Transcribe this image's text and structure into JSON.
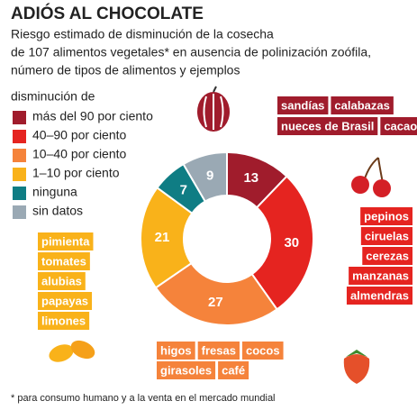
{
  "chart_data": {
    "type": "donut",
    "title": "ADIÓS AL CHOCOLATE",
    "subtitle": [
      "Riesgo estimado de disminución de la cosecha",
      "de 107 alimentos vegetales* en ausencia de polinización zoófila,",
      "número de tipos de alimentos y ejemplos"
    ],
    "legend_title": "disminución de",
    "categories": [
      "más del 90 por ciento",
      "40–90 por ciento",
      "10–40 por ciento",
      "1–10 por ciento",
      "ninguna",
      "sin datos"
    ],
    "values": [
      13,
      30,
      27,
      21,
      7,
      9
    ],
    "colors": [
      "#a01c2c",
      "#e52420",
      "#f5833b",
      "#f9b21a",
      "#0f7d84",
      "#9aa9b4"
    ],
    "examples": [
      [
        "sandías",
        "calabazas",
        "nueces de Brasil",
        "cacao"
      ],
      [
        "pepinos",
        "ciruelas",
        "cerezas",
        "manzanas",
        "almendras"
      ],
      [
        "higos",
        "fresas",
        "cocos",
        "girasoles",
        "café"
      ],
      [
        "pimienta",
        "tomates",
        "alubias",
        "papayas",
        "limones"
      ]
    ],
    "footnote": "* para consumo humano y a la venta en el mercado mundial"
  }
}
